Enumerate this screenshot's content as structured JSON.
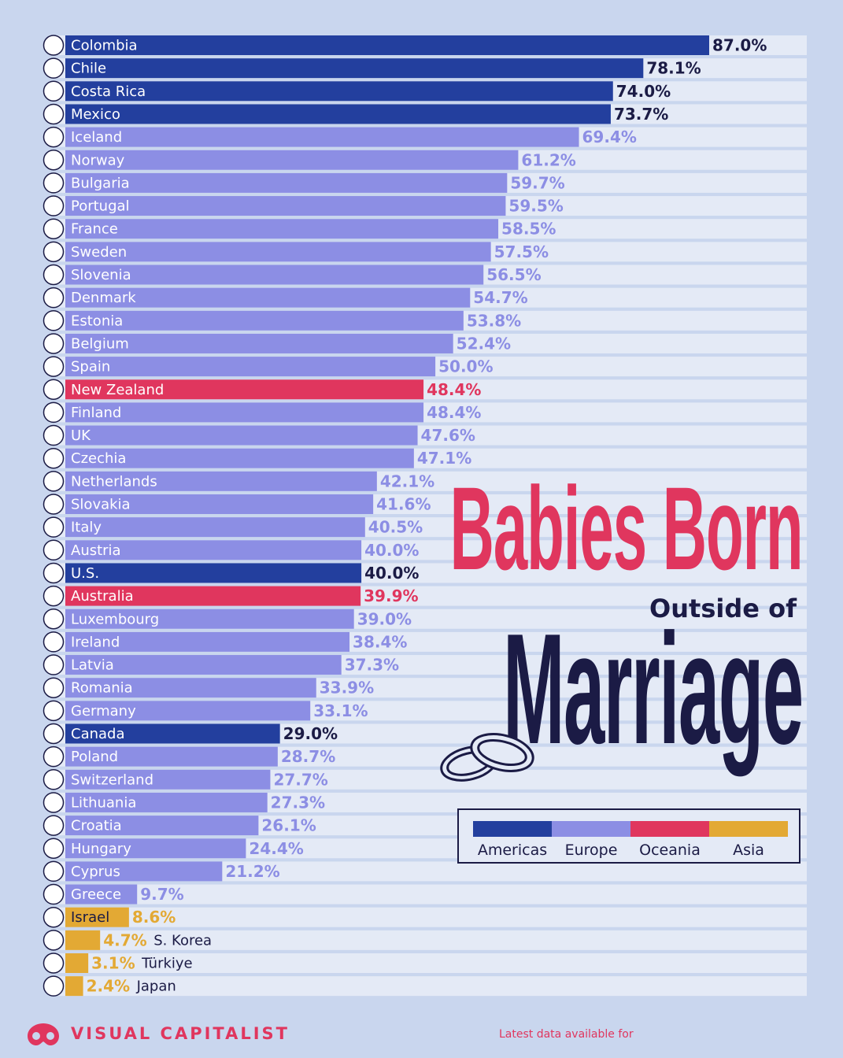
{
  "chart_data": {
    "type": "bar",
    "orientation": "horizontal",
    "title": "Babies Born",
    "subtitle": "Outside of",
    "title_highlight": "Marriage",
    "xlim": [
      0,
      87
    ],
    "categories": [
      "Colombia",
      "Chile",
      "Costa Rica",
      "Mexico",
      "Iceland",
      "Norway",
      "Bulgaria",
      "Portugal",
      "France",
      "Sweden",
      "Slovenia",
      "Denmark",
      "Estonia",
      "Belgium",
      "Spain",
      "New Zealand",
      "Finland",
      "UK",
      "Czechia",
      "Netherlands",
      "Slovakia",
      "Italy",
      "Austria",
      "U.S.",
      "Australia",
      "Luxembourg",
      "Ireland",
      "Latvia",
      "Romania",
      "Germany",
      "Canada",
      "Poland",
      "Switzerland",
      "Lithuania",
      "Croatia",
      "Hungary",
      "Cyprus",
      "Greece",
      "Israel",
      "S. Korea",
      "Türkiye",
      "Japan"
    ],
    "values": [
      87.0,
      78.1,
      74.0,
      73.7,
      69.4,
      61.2,
      59.7,
      59.5,
      58.5,
      57.5,
      56.5,
      54.7,
      53.8,
      52.4,
      50.0,
      48.4,
      48.4,
      47.6,
      47.1,
      42.1,
      41.6,
      40.5,
      40.0,
      40.0,
      39.9,
      39.0,
      38.4,
      37.3,
      33.9,
      33.1,
      29.0,
      28.7,
      27.7,
      27.3,
      26.1,
      24.4,
      21.2,
      9.7,
      8.6,
      4.7,
      3.1,
      2.4
    ],
    "value_labels": [
      "87.0%",
      "78.1%",
      "74.0%",
      "73.7%",
      "69.4%",
      "61.2%",
      "59.7%",
      "59.5%",
      "58.5%",
      "57.5%",
      "56.5%",
      "54.7%",
      "53.8%",
      "52.4%",
      "50.0%",
      "48.4%",
      "48.4%",
      "47.6%",
      "47.1%",
      "42.1%",
      "41.6%",
      "40.5%",
      "40.0%",
      "40.0%",
      "39.9%",
      "39.0%",
      "38.4%",
      "37.3%",
      "33.9%",
      "33.1%",
      "29.0%",
      "28.7%",
      "27.7%",
      "27.3%",
      "26.1%",
      "24.4%",
      "21.2%",
      "9.7%",
      "8.6%",
      "4.7%",
      "3.1%",
      "2.4%"
    ],
    "regions": [
      "Americas",
      "Americas",
      "Americas",
      "Americas",
      "Europe",
      "Europe",
      "Europe",
      "Europe",
      "Europe",
      "Europe",
      "Europe",
      "Europe",
      "Europe",
      "Europe",
      "Europe",
      "Oceania",
      "Europe",
      "Europe",
      "Europe",
      "Europe",
      "Europe",
      "Europe",
      "Europe",
      "Americas",
      "Oceania",
      "Europe",
      "Europe",
      "Europe",
      "Europe",
      "Europe",
      "Americas",
      "Europe",
      "Europe",
      "Europe",
      "Europe",
      "Europe",
      "Europe",
      "Europe",
      "Asia",
      "Asia",
      "Asia",
      "Asia"
    ],
    "legend": [
      {
        "name": "Americas",
        "color": "#233f9e"
      },
      {
        "name": "Europe",
        "color": "#8c8ee4"
      },
      {
        "name": "Oceania",
        "color": "#e0365e"
      },
      {
        "name": "Asia",
        "color": "#e3a934"
      }
    ],
    "value_label_colors": {
      "Americas": "#1b1b45",
      "Europe": "#8c8ee4",
      "Oceania": "#e0365e",
      "Asia": "#e3a934"
    },
    "icon": "country-flag-icon",
    "grid": false,
    "legend_position": "right"
  },
  "decor": {
    "rings": "wedding-rings-icon",
    "logo": "visual-capitalist-logo-icon"
  },
  "footer": {
    "brand": "VISUAL CAPITALIST",
    "note": "Latest data available for"
  }
}
